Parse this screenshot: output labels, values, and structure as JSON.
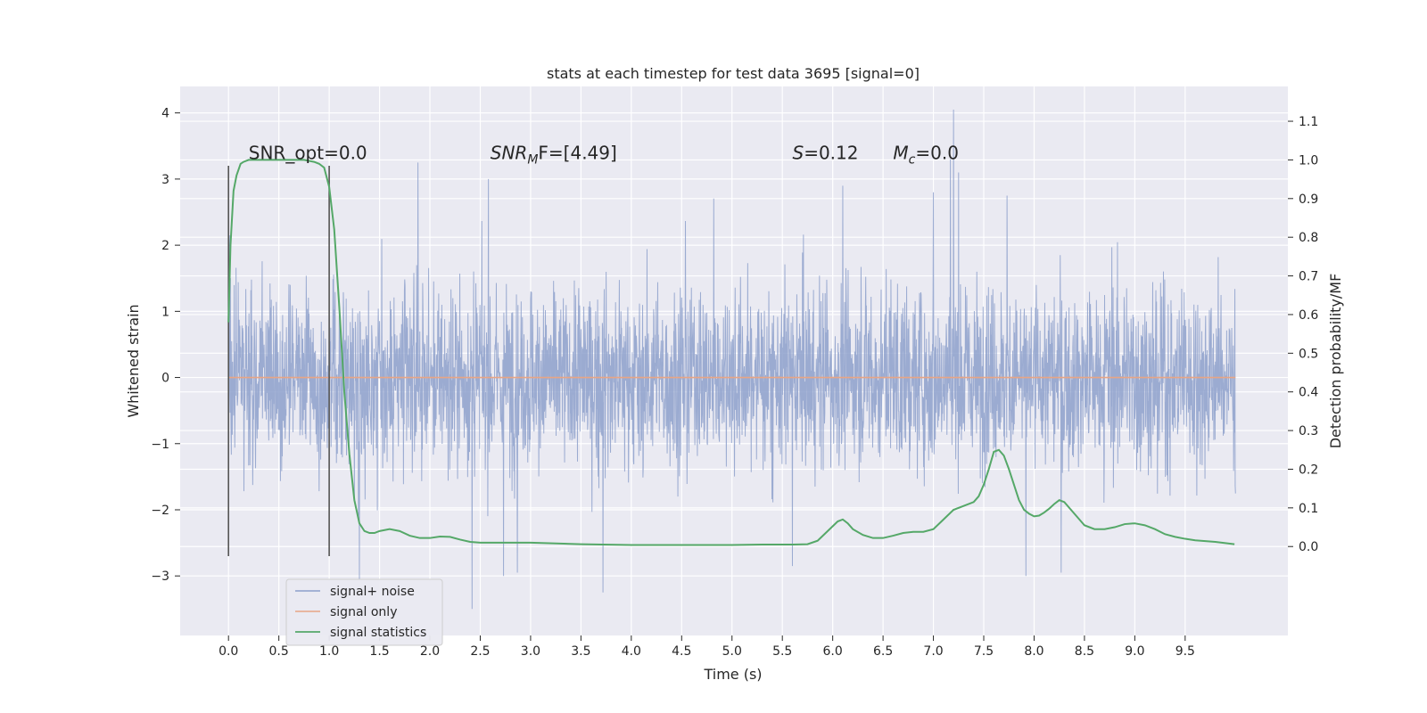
{
  "chart_data": {
    "type": "line",
    "title": "stats at each timestep for test data 3695 [signal=0]",
    "xlabel": "Time (s)",
    "ylabel": "Whitened strain",
    "ylabel_right": "Detection probability/MF",
    "xlim": [
      -0.48,
      10.52
    ],
    "ylim": [
      -3.9,
      4.4
    ],
    "ylim_right": [
      -0.23,
      1.19
    ],
    "x_ticks": [
      0.0,
      0.5,
      1.0,
      1.5,
      2.0,
      2.5,
      3.0,
      3.5,
      4.0,
      4.5,
      5.0,
      5.5,
      6.0,
      6.5,
      7.0,
      7.5,
      8.0,
      8.5,
      9.0,
      9.5
    ],
    "x_tick_labels": [
      "0.0",
      "0.5",
      "1.0",
      "1.5",
      "2.0",
      "2.5",
      "3.0",
      "3.5",
      "4.0",
      "4.5",
      "5.0",
      "5.5",
      "6.0",
      "6.5",
      "7.0",
      "7.5",
      "8.0",
      "8.5",
      "9.0",
      "9.5"
    ],
    "y_ticks": [
      -3,
      -2,
      -1,
      0,
      1,
      2,
      3,
      4
    ],
    "y_tick_labels": [
      "−3",
      "−2",
      "−1",
      "0",
      "1",
      "2",
      "3",
      "4"
    ],
    "y_right_ticks": [
      0.0,
      0.1,
      0.2,
      0.3,
      0.4,
      0.5,
      0.6,
      0.7,
      0.8,
      0.9,
      1.0,
      1.1
    ],
    "y_right_tick_labels": [
      "0.0",
      "0.1",
      "0.2",
      "0.3",
      "0.4",
      "0.5",
      "0.6",
      "0.7",
      "0.8",
      "0.9",
      "1.0",
      "1.1"
    ],
    "grid": true,
    "legend_position": "lower-left",
    "vertical_markers": {
      "x": [
        0.0,
        1.0
      ],
      "y_range": [
        -2.7,
        3.2
      ],
      "color": "#555555"
    },
    "annotations": [
      {
        "text": "SNR_opt=0.0",
        "x": 0.2,
        "y": 3.3,
        "style": "normal"
      },
      {
        "main": "SNR",
        "sub": "M",
        "suffix": "F=[4.49]",
        "x": 2.6,
        "y": 3.3,
        "style": "italic-sub"
      },
      {
        "main": "S",
        "suffix": "=0.12",
        "x": 5.6,
        "y": 3.3,
        "style": "italic"
      },
      {
        "main": "M",
        "sub": "c",
        "suffix": "=0.0",
        "x": 6.6,
        "y": 3.3,
        "style": "italic-sub"
      }
    ],
    "series": [
      {
        "name": "signal+ noise",
        "color": "#8da0cb",
        "kind": "noise",
        "x_range": [
          0.0,
          10.0
        ],
        "y_typical_range": [
          -1.4,
          1.4
        ],
        "y_max": 4.05,
        "y_min": -3.5,
        "peaks": [
          {
            "x": 0.01,
            "y": 2.15
          },
          {
            "x": 1.88,
            "y": 3.25
          },
          {
            "x": 2.58,
            "y": 3.0
          },
          {
            "x": 6.1,
            "y": 2.9
          },
          {
            "x": 7.0,
            "y": 2.8
          },
          {
            "x": 7.2,
            "y": 4.05
          },
          {
            "x": 7.17,
            "y": 3.3
          },
          {
            "x": 7.25,
            "y": 3.1
          },
          {
            "x": 7.73,
            "y": 2.75
          },
          {
            "x": 2.42,
            "y": -3.5
          },
          {
            "x": 3.72,
            "y": -3.25
          },
          {
            "x": 1.3,
            "y": -3.05
          },
          {
            "x": 2.73,
            "y": -3.0
          },
          {
            "x": 2.87,
            "y": -2.95
          },
          {
            "x": 7.92,
            "y": -3.0
          },
          {
            "x": 8.27,
            "y": -2.95
          },
          {
            "x": 5.6,
            "y": -2.85
          }
        ]
      },
      {
        "name": "signal only",
        "color": "#e8a585",
        "axis": "left",
        "x": [
          0.0,
          10.0
        ],
        "values": [
          0.0,
          0.0
        ]
      },
      {
        "name": "signal statistics",
        "color": "#55a868",
        "axis": "right",
        "x": [
          0.0,
          0.02,
          0.05,
          0.08,
          0.12,
          0.15,
          0.2,
          0.3,
          0.45,
          0.6,
          0.75,
          0.85,
          0.9,
          0.95,
          1.0,
          1.05,
          1.1,
          1.15,
          1.2,
          1.25,
          1.3,
          1.35,
          1.4,
          1.45,
          1.5,
          1.6,
          1.7,
          1.8,
          1.9,
          2.0,
          2.1,
          2.2,
          2.3,
          2.4,
          2.5,
          2.7,
          3.0,
          3.5,
          4.0,
          4.5,
          5.0,
          5.3,
          5.6,
          5.75,
          5.85,
          5.95,
          6.05,
          6.1,
          6.15,
          6.2,
          6.3,
          6.4,
          6.5,
          6.6,
          6.7,
          6.8,
          6.9,
          7.0,
          7.1,
          7.2,
          7.3,
          7.4,
          7.45,
          7.5,
          7.55,
          7.6,
          7.65,
          7.7,
          7.75,
          7.8,
          7.85,
          7.9,
          7.95,
          8.0,
          8.05,
          8.1,
          8.15,
          8.2,
          8.25,
          8.3,
          8.35,
          8.4,
          8.45,
          8.5,
          8.6,
          8.7,
          8.8,
          8.9,
          9.0,
          9.1,
          9.2,
          9.3,
          9.4,
          9.5,
          9.6,
          9.7,
          9.8,
          9.9,
          9.99
        ],
        "values": [
          0.58,
          0.78,
          0.92,
          0.96,
          0.99,
          0.995,
          1.0,
          1.0,
          1.0,
          1.0,
          1.0,
          0.995,
          0.99,
          0.98,
          0.93,
          0.82,
          0.62,
          0.4,
          0.24,
          0.12,
          0.06,
          0.04,
          0.035,
          0.035,
          0.04,
          0.045,
          0.04,
          0.028,
          0.022,
          0.022,
          0.026,
          0.025,
          0.018,
          0.012,
          0.01,
          0.01,
          0.01,
          0.006,
          0.004,
          0.004,
          0.004,
          0.005,
          0.005,
          0.006,
          0.015,
          0.04,
          0.065,
          0.07,
          0.06,
          0.045,
          0.03,
          0.022,
          0.022,
          0.028,
          0.035,
          0.038,
          0.038,
          0.045,
          0.07,
          0.095,
          0.105,
          0.115,
          0.13,
          0.16,
          0.2,
          0.245,
          0.25,
          0.235,
          0.2,
          0.16,
          0.12,
          0.095,
          0.085,
          0.078,
          0.08,
          0.088,
          0.098,
          0.11,
          0.12,
          0.115,
          0.1,
          0.085,
          0.07,
          0.055,
          0.045,
          0.045,
          0.05,
          0.058,
          0.06,
          0.055,
          0.045,
          0.032,
          0.025,
          0.02,
          0.016,
          0.014,
          0.012,
          0.009,
          0.006
        ]
      }
    ]
  }
}
